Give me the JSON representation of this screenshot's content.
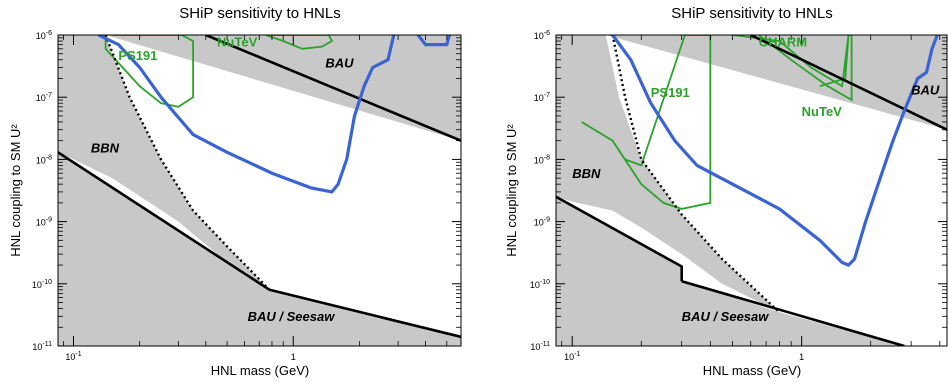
{
  "colors": {
    "excluded_fill": "#c8c8c8",
    "ship_curve": "#3a64d2",
    "experiment_curves": "#2aa32a",
    "bound_lines": "#000000",
    "background": "#ffffff"
  },
  "chart_data": [
    {
      "type": "line",
      "title": "SHiP sensitivity to HNLs",
      "xlabel": "HNL mass (GeV)",
      "ylabel": "HNL coupling to SM U²",
      "xscale": "log",
      "yscale": "log",
      "xlim": [
        0.085,
        5.8
      ],
      "ylim": [
        1e-11,
        1e-06
      ],
      "x_ticks": [
        {
          "value": 0.1,
          "base": "10",
          "exp": "-1"
        },
        {
          "value": 1,
          "base": "1",
          "exp": ""
        }
      ],
      "y_ticks": [
        {
          "value": 1e-11,
          "base": "10",
          "exp": "-11"
        },
        {
          "value": 1e-10,
          "base": "10",
          "exp": "-10"
        },
        {
          "value": 1e-09,
          "base": "10",
          "exp": "-9"
        },
        {
          "value": 1e-08,
          "base": "10",
          "exp": "-8"
        },
        {
          "value": 1e-07,
          "base": "10",
          "exp": "-7"
        },
        {
          "value": 1e-06,
          "base": "10",
          "exp": "-6"
        }
      ],
      "grid": false,
      "series": [
        {
          "role": "excluded-region-upper",
          "x": [
            0.085,
            0.14,
            5.8,
            5.8
          ],
          "y": [
            1e-06,
            1e-06,
            2e-08,
            1e-06
          ]
        },
        {
          "role": "excluded-region-lower",
          "x": [
            0.085,
            0.085,
            0.78,
            5.8,
            5.8
          ],
          "y": [
            1e-11,
            1.3e-08,
            8e-11,
            1.4e-11,
            1e-11
          ]
        },
        {
          "role": "excluded-region-left",
          "x": [
            0.085,
            0.085,
            0.14,
            0.18,
            0.25,
            0.35,
            0.5,
            0.78,
            0.5,
            0.3,
            0.15,
            0.1,
            0.085
          ],
          "y": [
            1e-11,
            1e-06,
            1e-06,
            1e-07,
            1e-08,
            1.5e-09,
            4e-10,
            8e-11,
            2.2e-10,
            1e-09,
            5e-09,
            1e-08,
            1.3e-08
          ]
        },
        {
          "name": "SHiP",
          "style": "ship",
          "x": [
            0.13,
            0.16,
            0.2,
            0.25,
            0.35,
            0.5,
            0.8,
            1.2,
            1.5,
            1.6,
            1.75,
            1.9,
            2.1,
            2.3,
            2.5,
            2.7,
            2.9,
            3.1,
            3.4,
            3.7,
            4.0,
            4.5,
            5.0,
            5.3,
            5.4
          ],
          "y": [
            1e-06,
            7e-07,
            3e-07,
            1e-07,
            2.5e-08,
            1.3e-08,
            6e-09,
            3.5e-09,
            3e-09,
            4e-09,
            1e-08,
            5e-08,
            1.5e-07,
            3e-07,
            3.5e-07,
            4e-07,
            1.2e-06,
            2e-06,
            1.5e-06,
            1e-06,
            7e-07,
            7e-07,
            7e-07,
            1.5e-06,
            1e-06
          ]
        },
        {
          "name": "BBN",
          "style": "dotted",
          "x": [
            0.14,
            0.18,
            0.25,
            0.35,
            0.5,
            0.78
          ],
          "y": [
            1e-06,
            1e-07,
            1e-08,
            1.5e-09,
            4e-10,
            8e-11
          ]
        },
        {
          "name": "BBN-line",
          "style": "bound",
          "x": [
            0.085,
            0.78
          ],
          "y": [
            1.3e-08,
            8e-11
          ]
        },
        {
          "name": "BAU / Seesaw",
          "style": "bound",
          "x": [
            0.78,
            5.8
          ],
          "y": [
            8e-11,
            1.4e-11
          ]
        },
        {
          "name": "BAU",
          "style": "bound",
          "x": [
            0.4,
            5.8
          ],
          "y": [
            1e-06,
            2e-08
          ]
        },
        {
          "name": "PS191",
          "style": "experiment",
          "x": [
            0.14,
            0.14,
            0.2,
            0.25,
            0.3,
            0.35,
            0.35,
            0.31,
            0.15
          ],
          "y": [
            1e-06,
            6e-07,
            1.5e-07,
            8e-08,
            7e-08,
            1e-07,
            8e-07,
            1e-06,
            1e-06
          ]
        },
        {
          "name": "NuTeV",
          "style": "experiment",
          "x": [
            0.75,
            0.9,
            1.1,
            1.35,
            1.5,
            1.45,
            1.2,
            0.95,
            0.8
          ],
          "y": [
            1e-06,
            8e-07,
            6e-07,
            6.5e-07,
            8e-07,
            1e-06,
            1e-06,
            1e-06,
            1e-06
          ]
        }
      ],
      "annotations": [
        {
          "text": "PS191",
          "style": "green",
          "x": 0.16,
          "y": 4e-07
        },
        {
          "text": "NuTeV",
          "style": "green",
          "x": 0.45,
          "y": 6.5e-07
        },
        {
          "text": "BAU",
          "style": "black",
          "x": 1.4,
          "y": 3e-07
        },
        {
          "text": "BBN",
          "style": "black",
          "x": 0.12,
          "y": 1.3e-08
        },
        {
          "text": "BAU / Seesaw",
          "style": "black",
          "x": 0.62,
          "y": 2.5e-11
        }
      ]
    },
    {
      "type": "line",
      "title": "SHiP sensitivity to HNLs",
      "xlabel": "HNL mass (GeV)",
      "ylabel": "HNL coupling to SM U²",
      "xscale": "log",
      "yscale": "log",
      "xlim": [
        0.085,
        4.3
      ],
      "ylim": [
        1e-11,
        1e-06
      ],
      "x_ticks": [
        {
          "value": 0.1,
          "base": "10",
          "exp": "-1"
        },
        {
          "value": 1,
          "base": "1",
          "exp": ""
        }
      ],
      "y_ticks": [
        {
          "value": 1e-11,
          "base": "10",
          "exp": "-11"
        },
        {
          "value": 1e-10,
          "base": "10",
          "exp": "-10"
        },
        {
          "value": 1e-09,
          "base": "10",
          "exp": "-9"
        },
        {
          "value": 1e-08,
          "base": "10",
          "exp": "-8"
        },
        {
          "value": 1e-07,
          "base": "10",
          "exp": "-7"
        },
        {
          "value": 1e-06,
          "base": "10",
          "exp": "-6"
        }
      ],
      "grid": false,
      "series": [
        {
          "role": "excluded-region-upper",
          "x": [
            0.085,
            0.14,
            4.3,
            4.3
          ],
          "y": [
            1e-06,
            1e-06,
            3e-08,
            1e-06
          ]
        },
        {
          "role": "excluded-region-lower",
          "x": [
            0.085,
            0.085,
            0.3,
            0.3,
            0.8,
            2.8,
            4.3,
            4.3
          ],
          "y": [
            1e-11,
            2.5e-09,
            1.9e-10,
            1.1e-10,
            3.5e-11,
            1e-11,
            1e-11,
            1e-11
          ]
        },
        {
          "role": "excluded-region-left",
          "x": [
            0.085,
            0.085,
            0.14,
            0.16,
            0.2,
            0.3,
            0.45,
            0.8,
            0.45,
            0.3,
            0.2,
            0.15,
            0.1,
            0.085
          ],
          "y": [
            1e-11,
            1e-06,
            1e-06,
            1e-07,
            1e-08,
            1.3e-09,
            2.5e-10,
            3.5e-11,
            1e-10,
            3e-10,
            8e-10,
            1.5e-09,
            2.1e-09,
            2.5e-09
          ]
        },
        {
          "name": "SHiP",
          "style": "ship",
          "x": [
            0.15,
            0.18,
            0.22,
            0.28,
            0.35,
            0.5,
            0.8,
            1.2,
            1.5,
            1.6,
            1.7,
            1.9,
            2.2,
            2.5,
            2.8,
            3.2,
            3.5,
            3.7,
            3.9
          ],
          "y": [
            1e-06,
            4e-07,
            8e-08,
            2e-08,
            8e-09,
            4e-09,
            1.6e-09,
            5e-10,
            2.2e-10,
            2e-10,
            2.5e-10,
            1e-09,
            5e-09,
            2e-08,
            6e-08,
            2e-07,
            2.5e-07,
            6e-07,
            1e-06
          ]
        },
        {
          "name": "BBN",
          "style": "dotted",
          "x": [
            0.15,
            0.17,
            0.2,
            0.3,
            0.45,
            0.8
          ],
          "y": [
            1e-06,
            1e-07,
            1e-08,
            1.3e-09,
            2.5e-10,
            3.5e-11
          ]
        },
        {
          "name": "BBN-line",
          "style": "bound",
          "x": [
            0.085,
            0.3,
            0.3
          ],
          "y": [
            2.5e-09,
            1.9e-10,
            1.1e-10
          ]
        },
        {
          "name": "BAU / Seesaw",
          "style": "bound",
          "x": [
            0.3,
            2.8
          ],
          "y": [
            1.1e-10,
            1e-11
          ]
        },
        {
          "name": "BAU",
          "style": "bound",
          "x": [
            0.6,
            4.3
          ],
          "y": [
            1e-06,
            3e-08
          ]
        },
        {
          "name": "PS191",
          "style": "experiment",
          "x": [
            0.11,
            0.15,
            0.2,
            0.25,
            0.3,
            0.4,
            0.4,
            0.31,
            0.2,
            0.17
          ],
          "y": [
            4e-08,
            2e-08,
            4e-09,
            2e-09,
            1.6e-09,
            2e-09,
            1e-06,
            1e-06,
            8e-09,
            1e-08
          ]
        },
        {
          "name": "CHARM",
          "style": "experiment",
          "x": [
            0.5,
            0.8,
            1.1,
            1.5,
            1.6,
            1.55,
            1.2
          ],
          "y": [
            1e-06,
            8e-07,
            3e-07,
            1.5e-07,
            1e-06,
            2e-07,
            1.5e-07
          ]
        },
        {
          "name": "NuTeV",
          "style": "experiment",
          "x": [
            0.65,
            0.9,
            1.3,
            1.65,
            1.65,
            1.6
          ],
          "y": [
            1e-06,
            4e-07,
            1.5e-07,
            9e-08,
            1e-06,
            1e-06
          ]
        }
      ],
      "annotations": [
        {
          "text": "CHARM",
          "style": "green",
          "x": 0.65,
          "y": 6.5e-07
        },
        {
          "text": "PS191",
          "style": "green",
          "x": 0.22,
          "y": 1e-07
        },
        {
          "text": "NuTeV",
          "style": "green",
          "x": 1.0,
          "y": 5e-08
        },
        {
          "text": "BAU",
          "style": "black",
          "x": 3.0,
          "y": 1.1e-07
        },
        {
          "text": "BBN",
          "style": "black",
          "x": 0.1,
          "y": 5e-09
        },
        {
          "text": "BAU / Seesaw",
          "style": "black",
          "x": 0.3,
          "y": 2.5e-11
        }
      ]
    }
  ]
}
